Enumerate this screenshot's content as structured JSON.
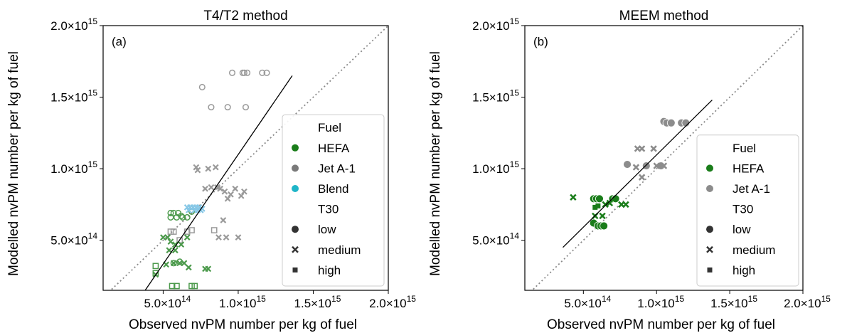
{
  "chart_data": [
    {
      "type": "scatter",
      "panel_label": "(a)",
      "title": "T4/T2 method",
      "xlabel": "Observed nvPM number per kg of fuel",
      "ylabel": "Modelled nvPM number per kg of fuel",
      "xlim": [
        100000000000000.0,
        2000000000000000.0
      ],
      "ylim": [
        150000000000000.0,
        2000000000000000.0
      ],
      "xticks": [
        500000000000000.0,
        1000000000000000.0,
        1500000000000000.0,
        2000000000000000.0
      ],
      "yticks": [
        500000000000000.0,
        1000000000000000.0,
        1500000000000000.0,
        2000000000000000.0
      ],
      "tick_labels": [
        "5.0×10",
        "1.0×10",
        "1.5×10",
        "2.0×10"
      ],
      "tick_exponents": [
        "14",
        "15",
        "15",
        "15"
      ],
      "one_to_one_line": true,
      "fit_line": [
        [
          380000000000000.0,
          150000000000000.0
        ],
        [
          1360000000000000.0,
          1650000000000000.0
        ]
      ],
      "legend": {
        "position": "right",
        "fuel_title": "Fuel",
        "fuels": [
          {
            "name": "HEFA",
            "color": "#1a7d1a"
          },
          {
            "name": "Jet A-1",
            "color": "#7a7a7a"
          },
          {
            "name": "Blend",
            "color": "#1fb5c8"
          }
        ],
        "t30_title": "T30",
        "t30": [
          {
            "name": "low",
            "marker": "o"
          },
          {
            "name": "medium",
            "marker": "x"
          },
          {
            "name": "high",
            "marker": "s"
          }
        ]
      },
      "series": [
        {
          "fuel": "Jet A-1",
          "t30": "low",
          "x": [
            960000000000000.0,
            1030000000000000.0,
            1040000000000000.0,
            1060000000000000.0,
            1160000000000000.0,
            1190000000000000.0,
            820000000000000.0,
            930000000000000.0,
            1050000000000000.0,
            760000000000000.0
          ],
          "y": [
            1670000000000000.0,
            1670000000000000.0,
            1670000000000000.0,
            1670000000000000.0,
            1670000000000000.0,
            1670000000000000.0,
            1430000000000000.0,
            1430000000000000.0,
            1430000000000000.0,
            1570000000000000.0
          ]
        },
        {
          "fuel": "Jet A-1",
          "t30": "medium",
          "x": [
            720000000000000.0,
            800000000000000.0,
            850000000000000.0,
            780000000000000.0,
            820000000000000.0,
            860000000000000.0,
            880000000000000.0,
            910000000000000.0,
            930000000000000.0,
            950000000000000.0,
            980000000000000.0,
            1020000000000000.0,
            1040000000000000.0,
            900000000000000.0,
            870000000000000.0,
            920000000000000.0,
            1000000000000000.0,
            730000000000000.0
          ],
          "y": [
            1010000000000000.0,
            1000000000000000.0,
            1010000000000000.0,
            860000000000000.0,
            870000000000000.0,
            870000000000000.0,
            860000000000000.0,
            840000000000000.0,
            790000000000000.0,
            820000000000000.0,
            860000000000000.0,
            810000000000000.0,
            840000000000000.0,
            640000000000000.0,
            520000000000000.0,
            520000000000000.0,
            520000000000000.0,
            990000000000000.0
          ]
        },
        {
          "fuel": "Jet A-1",
          "t30": "high",
          "x": [
            550000000000000.0,
            570000000000000.0,
            660000000000000.0,
            690000000000000.0,
            840000000000000.0,
            610000000000000.0
          ],
          "y": [
            560000000000000.0,
            560000000000000.0,
            560000000000000.0,
            570000000000000.0,
            570000000000000.0,
            500000000000000.0
          ]
        },
        {
          "fuel": "HEFA",
          "t30": "low",
          "x": [
            550000000000000.0,
            570000000000000.0,
            600000000000000.0,
            620000000000000.0,
            630000000000000.0,
            660000000000000.0,
            550000000000000.0,
            590000000000000.0,
            690000000000000.0,
            610000000000000.0,
            570000000000000.0
          ],
          "y": [
            690000000000000.0,
            690000000000000.0,
            690000000000000.0,
            670000000000000.0,
            660000000000000.0,
            660000000000000.0,
            660000000000000.0,
            660000000000000.0,
            700000000000000.0,
            350000000000000.0,
            340000000000000.0
          ]
        },
        {
          "fuel": "HEFA",
          "t30": "medium",
          "x": [
            500000000000000.0,
            530000000000000.0,
            550000000000000.0,
            580000000000000.0,
            620000000000000.0,
            660000000000000.0,
            540000000000000.0,
            580000000000000.0,
            520000000000000.0,
            570000000000000.0,
            610000000000000.0,
            640000000000000.0,
            670000000000000.0,
            780000000000000.0,
            800000000000000.0,
            450000000000000.0
          ],
          "y": [
            520000000000000.0,
            520000000000000.0,
            490000000000000.0,
            470000000000000.0,
            470000000000000.0,
            520000000000000.0,
            430000000000000.0,
            430000000000000.0,
            330000000000000.0,
            340000000000000.0,
            340000000000000.0,
            340000000000000.0,
            310000000000000.0,
            300000000000000.0,
            300000000000000.0,
            260000000000000.0
          ]
        },
        {
          "fuel": "HEFA",
          "t30": "high",
          "x": [
            450000000000000.0,
            450000000000000.0,
            560000000000000.0,
            590000000000000.0,
            690000000000000.0,
            710000000000000.0
          ],
          "y": [
            320000000000000.0,
            270000000000000.0,
            180000000000000.0,
            180000000000000.0,
            180000000000000.0,
            180000000000000.0
          ]
        },
        {
          "fuel": "Blend",
          "t30": "medium",
          "x": [
            660000000000000.0,
            680000000000000.0,
            700000000000000.0,
            720000000000000.0,
            740000000000000.0,
            760000000000000.0,
            670000000000000.0,
            710000000000000.0,
            730000000000000.0,
            750000000000000.0
          ],
          "y": [
            730000000000000.0,
            730000000000000.0,
            730000000000000.0,
            730000000000000.0,
            730000000000000.0,
            720000000000000.0,
            710000000000000.0,
            710000000000000.0,
            710000000000000.0,
            710000000000000.0
          ]
        }
      ]
    },
    {
      "type": "scatter",
      "panel_label": "(b)",
      "title": "MEEM method",
      "xlabel": "Observed nvPM number per kg of fuel",
      "ylabel": "Modelled nvPM number per kg of fuel",
      "xlim": [
        100000000000000.0,
        2000000000000000.0
      ],
      "ylim": [
        150000000000000.0,
        2000000000000000.0
      ],
      "xticks": [
        500000000000000.0,
        1000000000000000.0,
        1500000000000000.0,
        2000000000000000.0
      ],
      "yticks": [
        500000000000000.0,
        1000000000000000.0,
        1500000000000000.0,
        2000000000000000.0
      ],
      "tick_labels": [
        "5.0×10",
        "1.0×10",
        "1.5×10",
        "2.0×10"
      ],
      "tick_exponents": [
        "14",
        "15",
        "15",
        "15"
      ],
      "one_to_one_line": true,
      "fit_line": [
        [
          360000000000000.0,
          450000000000000.0
        ],
        [
          1380000000000000.0,
          1480000000000000.0
        ]
      ],
      "legend": {
        "position": "right",
        "fuel_title": "Fuel",
        "fuels": [
          {
            "name": "HEFA",
            "color": "#1a7d1a"
          },
          {
            "name": "Jet A-1",
            "color": "#8c8c8c"
          }
        ],
        "t30_title": "T30",
        "t30": [
          {
            "name": "low",
            "marker": "o"
          },
          {
            "name": "medium",
            "marker": "x"
          },
          {
            "name": "high",
            "marker": "s"
          }
        ]
      },
      "series": [
        {
          "fuel": "Jet A-1",
          "t30": "low",
          "x": [
            1050000000000000.0,
            1070000000000000.0,
            1100000000000000.0,
            1170000000000000.0,
            1200000000000000.0,
            800000000000000.0,
            930000000000000.0,
            1030000000000000.0
          ],
          "y": [
            1330000000000000.0,
            1320000000000000.0,
            1320000000000000.0,
            1320000000000000.0,
            1320000000000000.0,
            1030000000000000.0,
            1020000000000000.0,
            1020000000000000.0
          ]
        },
        {
          "fuel": "Jet A-1",
          "t30": "medium",
          "x": [
            870000000000000.0,
            900000000000000.0,
            980000000000000.0,
            1000000000000000.0,
            860000000000000.0,
            1050000000000000.0,
            900000000000000.0
          ],
          "y": [
            1140000000000000.0,
            1140000000000000.0,
            1140000000000000.0,
            1020000000000000.0,
            1010000000000000.0,
            1020000000000000.0,
            940000000000000.0
          ]
        },
        {
          "fuel": "HEFA",
          "t30": "low",
          "x": [
            570000000000000.0,
            590000000000000.0,
            610000000000000.0,
            700000000000000.0,
            720000000000000.0,
            570000000000000.0,
            600000000000000.0,
            620000000000000.0,
            640000000000000.0
          ],
          "y": [
            790000000000000.0,
            790000000000000.0,
            790000000000000.0,
            790000000000000.0,
            790000000000000.0,
            620000000000000.0,
            600000000000000.0,
            600000000000000.0,
            600000000000000.0
          ]
        },
        {
          "fuel": "HEFA",
          "t30": "medium",
          "x": [
            430000000000000.0,
            580000000000000.0,
            630000000000000.0,
            650000000000000.0,
            680000000000000.0,
            760000000000000.0,
            790000000000000.0
          ],
          "y": [
            800000000000000.0,
            670000000000000.0,
            670000000000000.0,
            750000000000000.0,
            760000000000000.0,
            750000000000000.0,
            750000000000000.0
          ]
        },
        {
          "fuel": "HEFA",
          "t30": "high",
          "x": [
            580000000000000.0,
            600000000000000.0
          ],
          "y": [
            730000000000000.0,
            740000000000000.0
          ]
        }
      ]
    }
  ]
}
